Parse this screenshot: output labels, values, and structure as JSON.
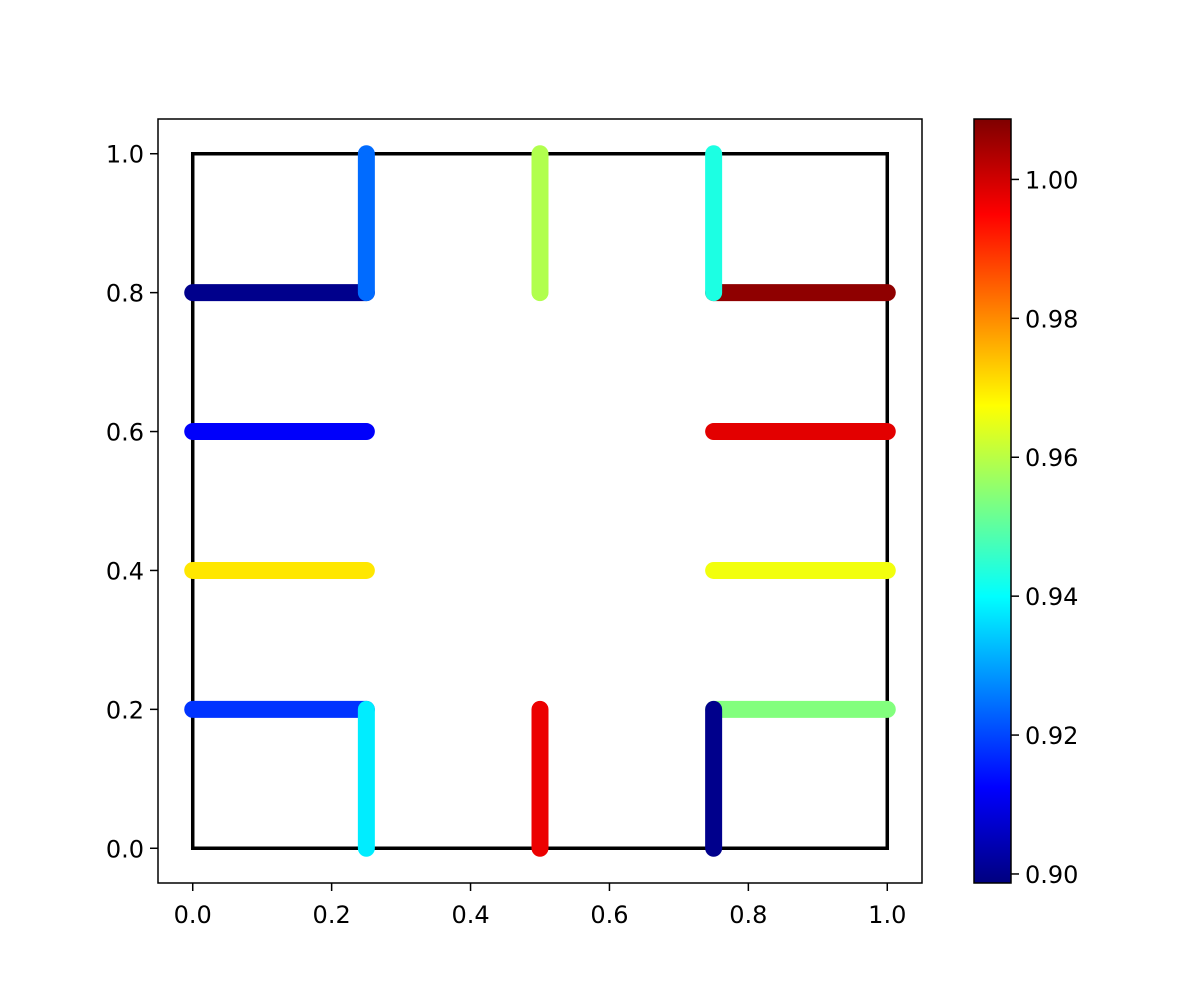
{
  "chart_data": {
    "type": "scatter",
    "title": "",
    "xlabel": "",
    "ylabel": "",
    "xlim": [
      -0.05,
      1.05
    ],
    "ylim": [
      -0.05,
      1.05
    ],
    "grid": false,
    "x_ticks": [
      "0.0",
      "0.2",
      "0.4",
      "0.6",
      "0.8",
      "1.0"
    ],
    "y_ticks": [
      "0.0",
      "0.2",
      "0.4",
      "0.6",
      "0.8",
      "1.0"
    ],
    "boundary_square": [
      [
        0,
        0
      ],
      [
        1,
        0
      ],
      [
        1,
        1
      ],
      [
        0,
        1
      ]
    ],
    "colormap": "jet",
    "colorbar": {
      "range": [
        0.8987,
        1.0087
      ],
      "ticks": [
        0.9,
        0.92,
        0.94,
        0.96,
        0.98,
        1.0
      ],
      "tick_labels": [
        "0.90",
        "0.92",
        "0.94",
        "0.96",
        "0.98",
        "1.00"
      ]
    },
    "segments": [
      {
        "id": "left-y0.8",
        "from": [
          0,
          0.8
        ],
        "to": [
          0.25,
          0.8
        ],
        "value": 0.9
      },
      {
        "id": "left-y0.6",
        "from": [
          0,
          0.6
        ],
        "to": [
          0.25,
          0.6
        ],
        "value": 0.912
      },
      {
        "id": "left-y0.4",
        "from": [
          0,
          0.4
        ],
        "to": [
          0.25,
          0.4
        ],
        "value": 0.97
      },
      {
        "id": "left-y0.2",
        "from": [
          0,
          0.2
        ],
        "to": [
          0.25,
          0.2
        ],
        "value": 0.918
      },
      {
        "id": "right-y0.8",
        "from": [
          0.75,
          0.8
        ],
        "to": [
          1,
          0.8
        ],
        "value": 1.007
      },
      {
        "id": "right-y0.6",
        "from": [
          0.75,
          0.6
        ],
        "to": [
          1,
          0.6
        ],
        "value": 0.998
      },
      {
        "id": "right-y0.4",
        "from": [
          0.75,
          0.4
        ],
        "to": [
          1,
          0.4
        ],
        "value": 0.966
      },
      {
        "id": "right-y0.2",
        "from": [
          0.75,
          0.2
        ],
        "to": [
          1,
          0.2
        ],
        "value": 0.954
      },
      {
        "id": "top-x0.25",
        "from": [
          0.25,
          0.8
        ],
        "to": [
          0.25,
          1
        ],
        "value": 0.924
      },
      {
        "id": "top-x0.5",
        "from": [
          0.5,
          0.8
        ],
        "to": [
          0.5,
          1
        ],
        "value": 0.959
      },
      {
        "id": "top-x0.75",
        "from": [
          0.75,
          0.8
        ],
        "to": [
          0.75,
          1
        ],
        "value": 0.943
      },
      {
        "id": "bottom-x0.25",
        "from": [
          0.25,
          0
        ],
        "to": [
          0.25,
          0.2
        ],
        "value": 0.938
      },
      {
        "id": "bottom-x0.5",
        "from": [
          0.5,
          0
        ],
        "to": [
          0.5,
          0.2
        ],
        "value": 0.997
      },
      {
        "id": "bottom-x0.75",
        "from": [
          0.75,
          0
        ],
        "to": [
          0.75,
          0.2
        ],
        "value": 0.9
      }
    ]
  }
}
